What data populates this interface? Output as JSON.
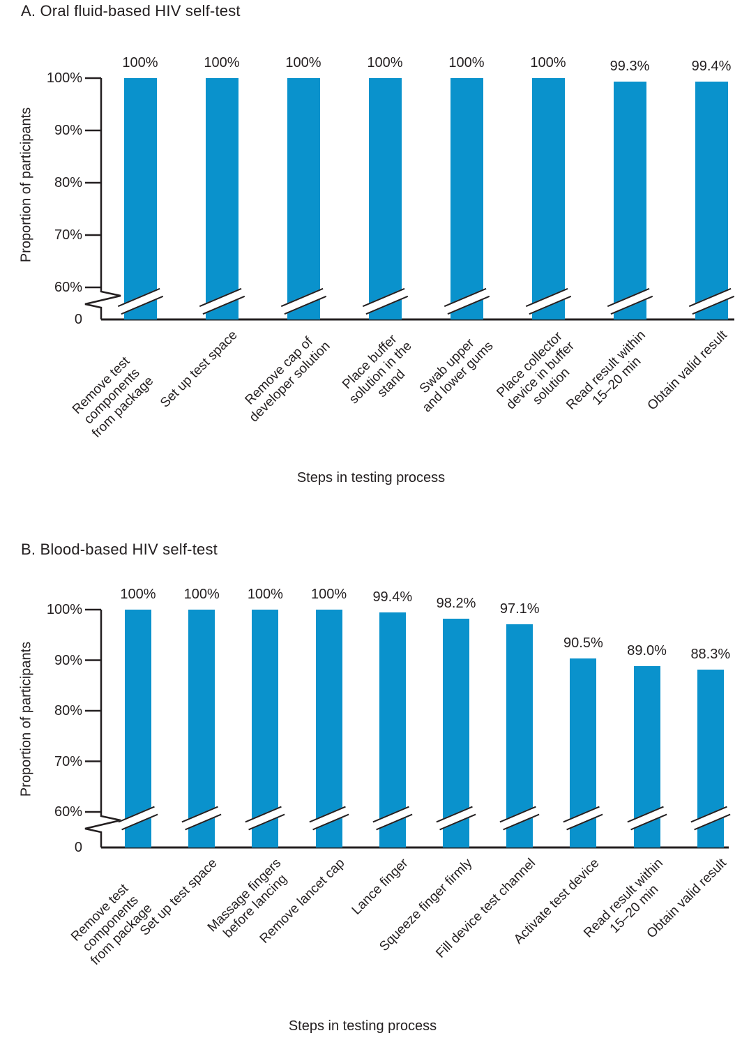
{
  "figure": {
    "background": "#ffffff",
    "text_color": "#231f20",
    "axis_color": "#231f20",
    "bar_color": "#0a92cc"
  },
  "chart_data": [
    {
      "type": "bar",
      "panel": "A",
      "title": "A. Oral fluid-based HIV self-test",
      "xlabel": "Steps in testing process",
      "ylabel": "Proportion of participants",
      "bar_color": "#0a92cc",
      "y_axis": {
        "tick_labels": [
          "100%",
          "90%",
          "80%",
          "70%",
          "60%",
          "0"
        ],
        "tick_values": [
          100,
          90,
          80,
          70,
          60,
          0
        ],
        "range_shown": [
          60,
          100
        ],
        "axis_break": "y-axis broken between 0 and 60%; each bar carries a break mark near its base",
        "grid": false
      },
      "categories": [
        "Remove test components\nfrom package",
        "Set up test space",
        "Remove cap of\ndeveloper solution",
        "Place buffer\nsolution in the\nstand",
        "Swab upper\nand lower gums",
        "Place collector\ndevice in buffer\nsolution",
        "Read result within\n15–20 min",
        "Obtain valid result"
      ],
      "values": [
        100,
        100,
        100,
        100,
        100,
        100,
        99.3,
        99.4
      ],
      "value_labels": [
        "100%",
        "100%",
        "100%",
        "100%",
        "100%",
        "100%",
        "99.3%",
        "99.4%"
      ]
    },
    {
      "type": "bar",
      "panel": "B",
      "title": "B. Blood-based HIV self-test",
      "xlabel": "Steps in testing process",
      "ylabel": "Proportion of participants",
      "bar_color": "#0a92cc",
      "y_axis": {
        "tick_labels": [
          "100%",
          "90%",
          "80%",
          "70%",
          "60%",
          "0"
        ],
        "tick_values": [
          100,
          90,
          80,
          70,
          60,
          0
        ],
        "range_shown": [
          60,
          100
        ],
        "axis_break": "y-axis broken between 0 and 60%; each bar carries a break mark near its base",
        "grid": false
      },
      "categories": [
        "Remove test components\nfrom package",
        "Set up test space",
        "Massage fingers\nbefore lancing",
        "Remove lancet cap",
        "Lance finger",
        "Squeeze finger firmly",
        "Fill device test channel",
        "Activate test device",
        "Read result within\n15–20 min",
        "Obtain valid result"
      ],
      "values": [
        100,
        100,
        100,
        100,
        99.4,
        98.2,
        97.1,
        90.5,
        89.0,
        88.3
      ],
      "value_labels": [
        "100%",
        "100%",
        "100%",
        "100%",
        "99.4%",
        "98.2%",
        "97.1%",
        "90.5%",
        "89.0%",
        "88.3%"
      ]
    }
  ]
}
